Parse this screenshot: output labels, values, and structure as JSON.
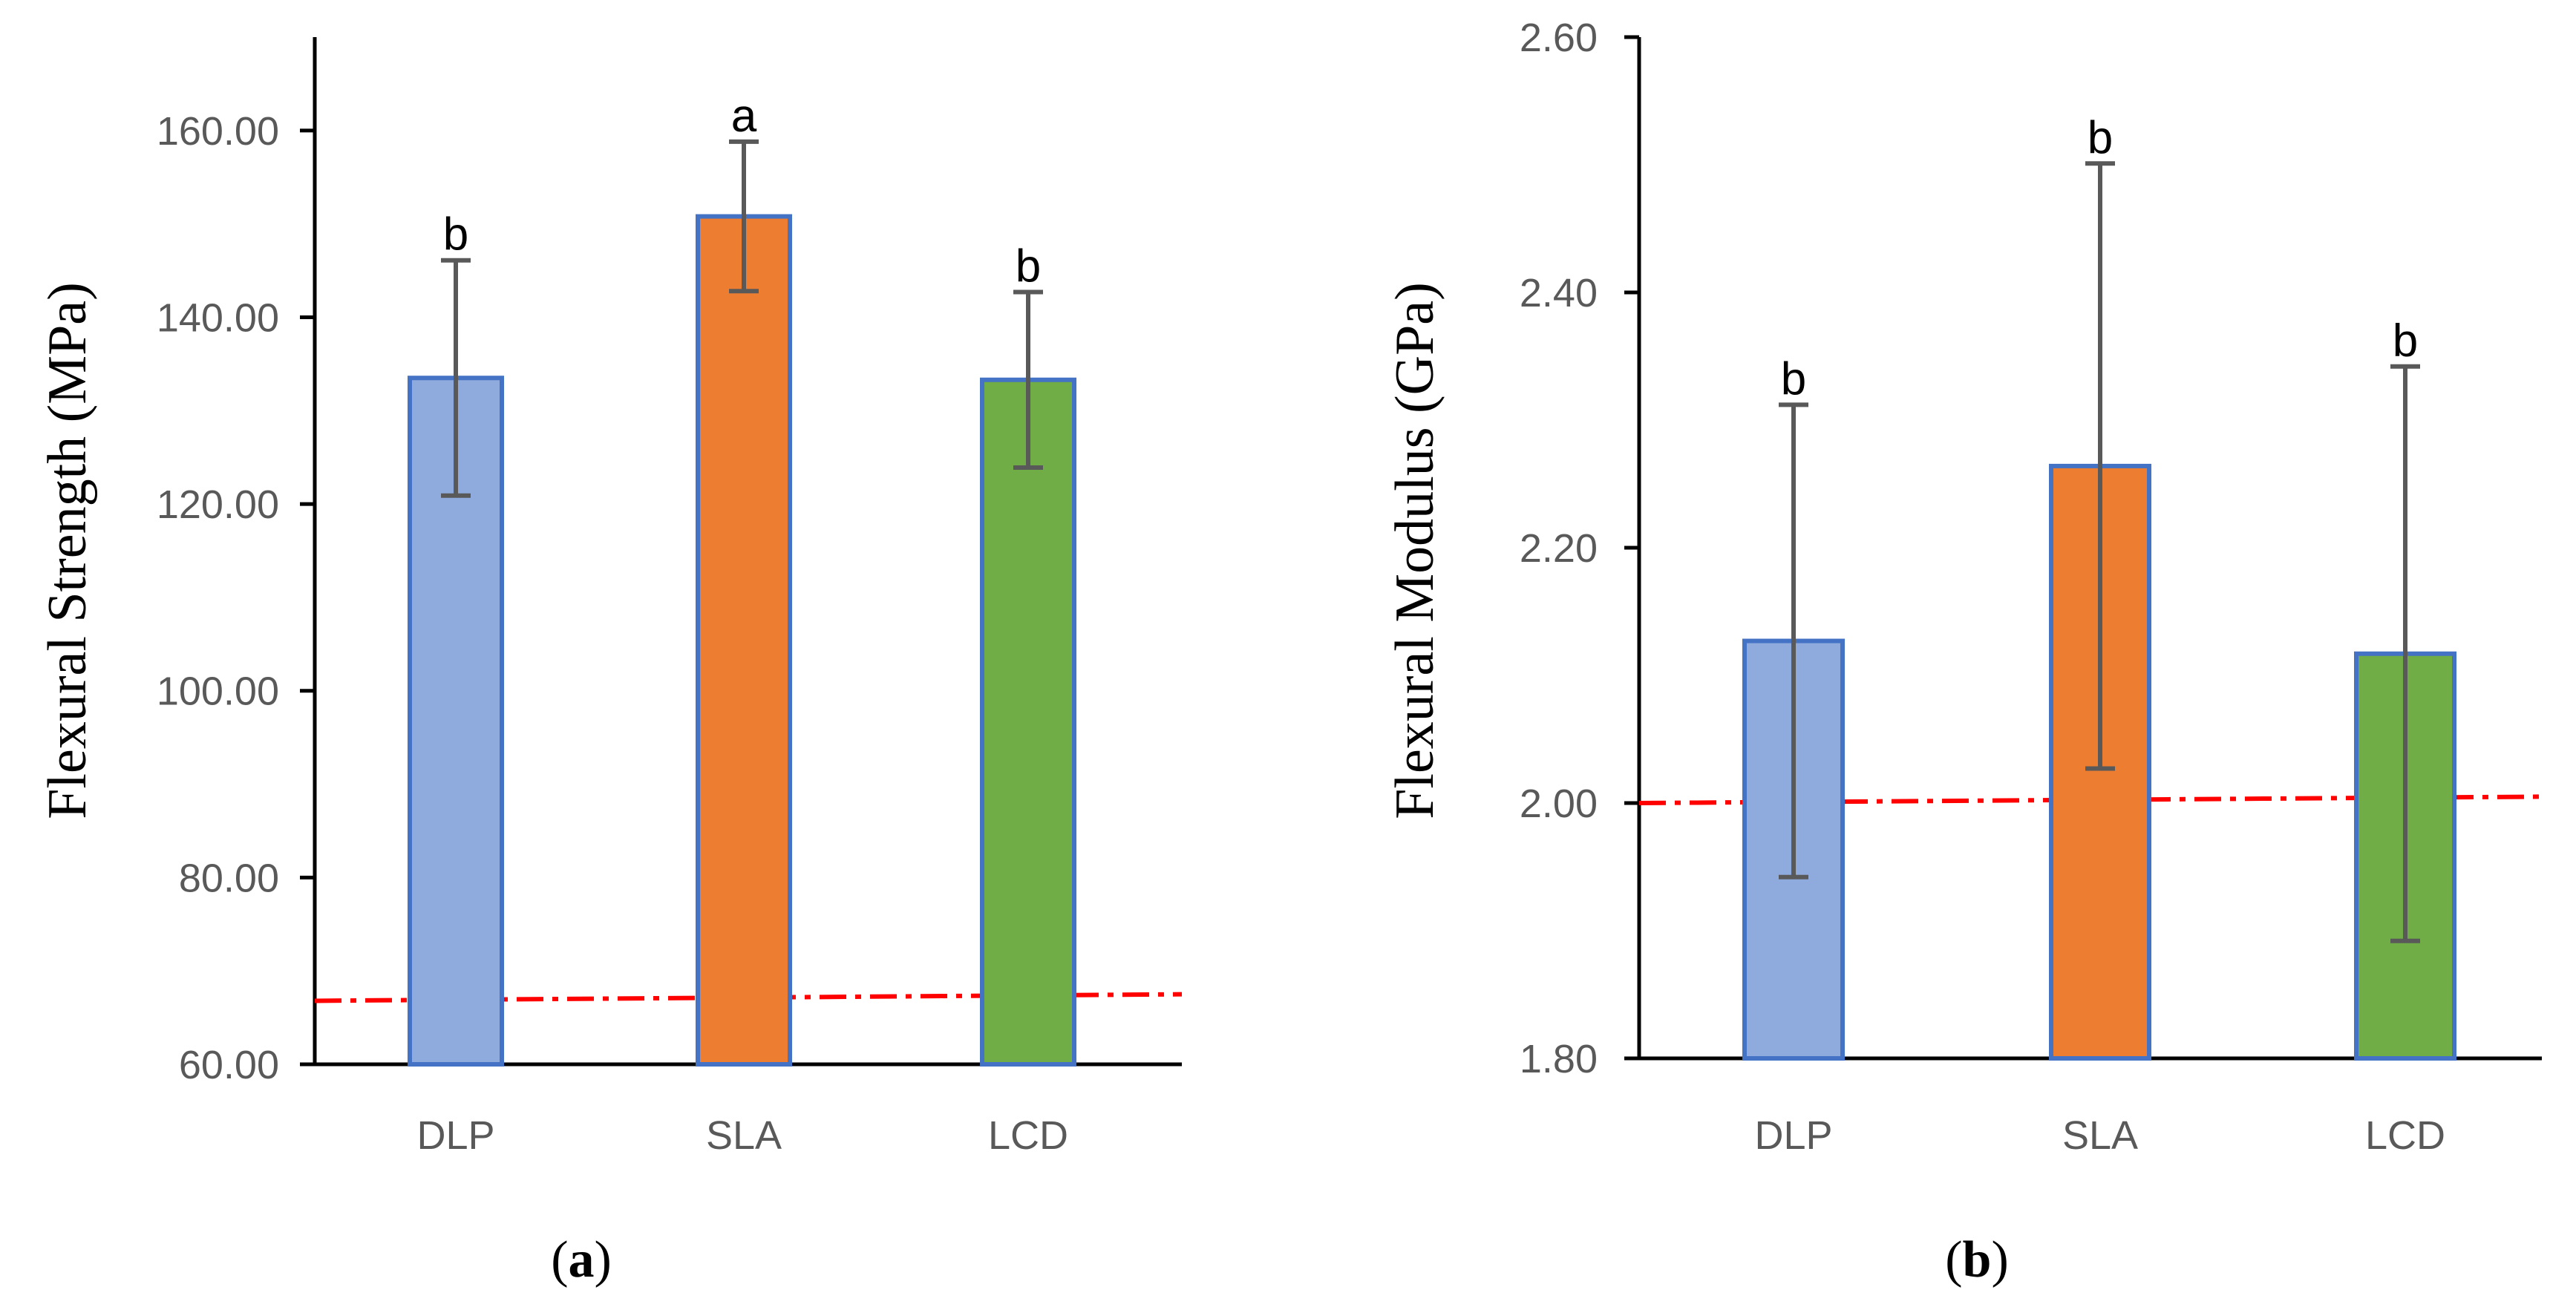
{
  "chart_data": [
    {
      "type": "bar",
      "panel": "a",
      "panel_label": "a",
      "categories": [
        "DLP",
        "SLA",
        "LCD"
      ],
      "values": [
        133.5,
        150.8,
        133.3
      ],
      "errors": [
        12.6,
        8.0,
        9.4
      ],
      "colors": [
        "#8faadc",
        "#ed7d31",
        "#70ad47"
      ],
      "edge_color": "#4472c4",
      "significance": [
        "b",
        "a",
        "b"
      ],
      "ylabel": "Flexural Strength (MPa)",
      "xlabel": "",
      "ylim": [
        60,
        170
      ],
      "yticks": [
        60,
        80,
        100,
        120,
        140,
        160
      ],
      "ytick_labels": [
        "60.00",
        "80.00",
        "100.00",
        "120.00",
        "140.00",
        "160.00"
      ],
      "reference_line": {
        "y_start": 66.8,
        "y_end": 67.5,
        "color": "#ff0000",
        "style": "dash-dot"
      },
      "grid": false
    },
    {
      "type": "bar",
      "panel": "b",
      "panel_label": "b",
      "categories": [
        "DLP",
        "SLA",
        "LCD"
      ],
      "values": [
        2.127,
        2.264,
        2.117
      ],
      "errors": [
        0.185,
        0.237,
        0.225
      ],
      "colors": [
        "#8faadc",
        "#ed7d31",
        "#70ad47"
      ],
      "edge_color": "#4472c4",
      "significance": [
        "b",
        "b",
        "b"
      ],
      "ylabel": "Flexural Modulus (GPa)",
      "xlabel": "",
      "ylim": [
        1.8,
        2.6
      ],
      "yticks": [
        1.8,
        2.0,
        2.2,
        2.4,
        2.6
      ],
      "ytick_labels": [
        "1.80",
        "2.00",
        "2.20",
        "2.40",
        "2.60"
      ],
      "reference_line": {
        "y_start": 2.0,
        "y_end": 2.005,
        "color": "#ff0000",
        "style": "dash-dot"
      },
      "grid": false
    }
  ]
}
